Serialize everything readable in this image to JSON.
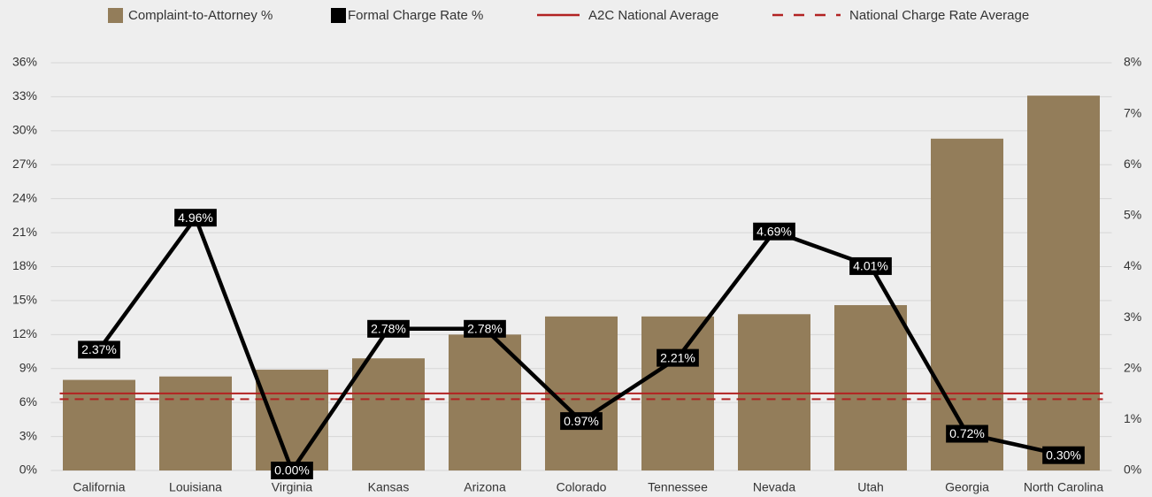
{
  "chart_data": {
    "type": "bar",
    "categories": [
      "California",
      "Louisiana",
      "Virginia",
      "Kansas",
      "Arizona",
      "Colorado",
      "Tennessee",
      "Nevada",
      "Utah",
      "Georgia",
      "North Carolina"
    ],
    "series": [
      {
        "name": "Complaint-to-Attorney %",
        "type": "bar",
        "color": "#937d5a",
        "values": [
          8.0,
          8.3,
          8.9,
          9.9,
          12.0,
          13.6,
          13.6,
          13.8,
          14.6,
          29.3,
          33.1
        ]
      },
      {
        "name": "Formal Charge Rate %",
        "type": "line",
        "axis": "y2",
        "color": "#000000",
        "values": [
          2.37,
          4.96,
          0.0,
          2.78,
          2.78,
          0.97,
          2.21,
          4.69,
          4.01,
          0.72,
          0.3
        ],
        "value_labels": [
          "2.37%",
          "4.96%",
          "0.00%",
          "2.78%",
          "2.78%",
          "0.97%",
          "2.21%",
          "4.69%",
          "4.01%",
          "0.72%",
          "0.30%"
        ]
      }
    ],
    "reference_lines": [
      {
        "name": "A2C National Average",
        "value": 6.8,
        "axis": "y",
        "color": "#b22222",
        "style": "solid"
      },
      {
        "name": "National Charge Rate Average",
        "value": 1.4,
        "axis": "y2",
        "color": "#b22222",
        "style": "dashed"
      }
    ],
    "ylim": [
      0,
      36
    ],
    "yticks": [
      {
        "value": 0,
        "label": "0%"
      },
      {
        "value": 3,
        "label": "3%"
      },
      {
        "value": 6,
        "label": "6%"
      },
      {
        "value": 9,
        "label": "9%"
      },
      {
        "value": 12,
        "label": "12%"
      },
      {
        "value": 15,
        "label": "15%"
      },
      {
        "value": 18,
        "label": "18%"
      },
      {
        "value": 21,
        "label": "21%"
      },
      {
        "value": 24,
        "label": "24%"
      },
      {
        "value": 27,
        "label": "27%"
      },
      {
        "value": 30,
        "label": "30%"
      },
      {
        "value": 33,
        "label": "33%"
      },
      {
        "value": 36,
        "label": "36%"
      }
    ],
    "y2lim": [
      0,
      8
    ],
    "y2ticks": [
      {
        "value": 0,
        "label": "0%"
      },
      {
        "value": 1,
        "label": "1%"
      },
      {
        "value": 2,
        "label": "2%"
      },
      {
        "value": 3,
        "label": "3%"
      },
      {
        "value": 4,
        "label": "4%"
      },
      {
        "value": 5,
        "label": "5%"
      },
      {
        "value": 6,
        "label": "6%"
      },
      {
        "value": 7,
        "label": "7%"
      },
      {
        "value": 8,
        "label": "8%"
      }
    ],
    "grid": true,
    "legend": "top"
  }
}
